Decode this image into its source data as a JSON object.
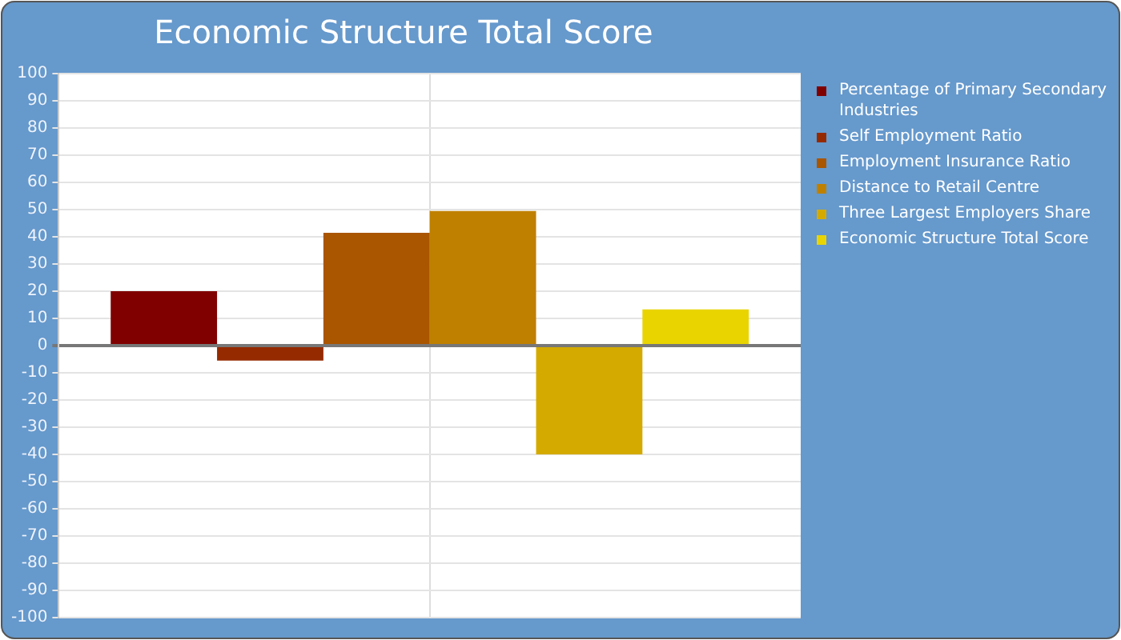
{
  "chart_data": {
    "type": "bar",
    "title": "Economic Structure Total Score",
    "categories": [
      null
    ],
    "series": [
      {
        "name": "Percentage of Primary Secondary Industries",
        "color": "#800000",
        "values": [
          20
        ]
      },
      {
        "name": "Self Employment Ratio",
        "color": "#952a00",
        "values": [
          -5.5
        ]
      },
      {
        "name": "Employment Insurance Ratio",
        "color": "#aa5500",
        "values": [
          41.5
        ]
      },
      {
        "name": "Distance to Retail Centre",
        "color": "#bf8000",
        "values": [
          49.5
        ]
      },
      {
        "name": "Three Largest Employers Share",
        "color": "#d4aa00",
        "values": [
          -40
        ]
      },
      {
        "name": "Economic Structure Total Score",
        "color": "#e9d400",
        "values": [
          13.3
        ]
      }
    ],
    "ylim": [
      -100,
      100
    ],
    "yticks": [
      -100,
      -90,
      -80,
      -70,
      -60,
      -50,
      -40,
      -30,
      -20,
      -10,
      0,
      10,
      20,
      30,
      40,
      50,
      60,
      70,
      80,
      90,
      100
    ],
    "grid": true,
    "legend": "right"
  }
}
